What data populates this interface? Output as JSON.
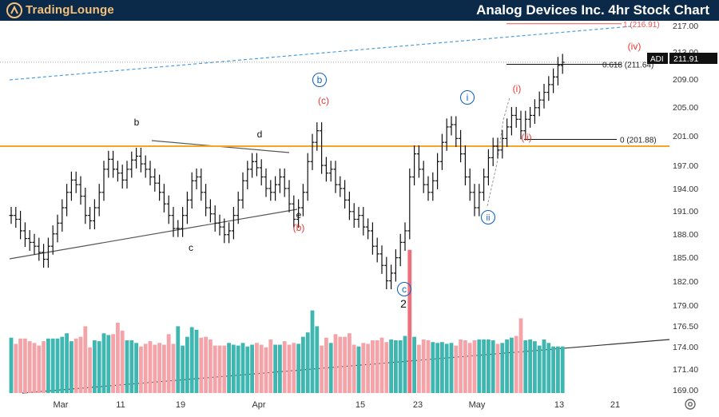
{
  "header": {
    "brand": "TradingLounge",
    "title": "Analog Devices Inc. 4hr Stock Chart",
    "background": "#0b2a4a",
    "brand_color": "#f5c07a"
  },
  "chart_data": {
    "type": "ohlc",
    "title": "Analog Devices Inc. 4hr Stock Chart",
    "symbol": "ADI",
    "last_price": "211.91",
    "price_axis": {
      "min": 168.5,
      "max": 217.3,
      "ticks": [
        "217.00",
        "213.00",
        "209.00",
        "205.00",
        "201.00",
        "197.00",
        "194.00",
        "191.00",
        "188.00",
        "185.00",
        "182.00",
        "179.00",
        "176.50",
        "174.00",
        "171.40",
        "169.00"
      ]
    },
    "time_axis": {
      "labels": [
        "Mar",
        "11",
        "19",
        "Apr",
        "15",
        "23",
        "May",
        "13",
        "21"
      ]
    },
    "closes": [
      192,
      191.5,
      190,
      189,
      188.5,
      188,
      187.2,
      186.3,
      188,
      189.6,
      191,
      193,
      195,
      196.6,
      196,
      194.5,
      192,
      191.3,
      193,
      195,
      198,
      199.3,
      198,
      197.5,
      196.6,
      198,
      199.2,
      199.7,
      198.7,
      198,
      197,
      196.2,
      195,
      193.5,
      192,
      190.3,
      190.3,
      192,
      194,
      196.5,
      197,
      195,
      193,
      192.2,
      191,
      190.5,
      189.5,
      190,
      192,
      194,
      196.5,
      198,
      199,
      198.2,
      197,
      195.5,
      195,
      196,
      197,
      195.5,
      193.5,
      191.5,
      193,
      195,
      199,
      201.5,
      203,
      198.5,
      197.5,
      198,
      196,
      195.5,
      194,
      192.5,
      191.5,
      192,
      190.5,
      190,
      188,
      187,
      185.5,
      183.5,
      184.5,
      186.5,
      188.5,
      190,
      197,
      200,
      198,
      196,
      195,
      196.5,
      199,
      201.5,
      203.5,
      203.8,
      202,
      200,
      197,
      195,
      193,
      195,
      197,
      199.5,
      201,
      200.5,
      202,
      203.5,
      205,
      204.5,
      203,
      204.5,
      205,
      206,
      207,
      208,
      209,
      210,
      211.5,
      211.9
    ],
    "volume": [
      63,
      56,
      62,
      62,
      59,
      57,
      54,
      59,
      62,
      62,
      62,
      64,
      68,
      59,
      62,
      64,
      76,
      52,
      60,
      59,
      68,
      66,
      67,
      80,
      71,
      60,
      60,
      57,
      53,
      56,
      59,
      55,
      57,
      55,
      67,
      56,
      76,
      54,
      64,
      75,
      72,
      63,
      64,
      61,
      54,
      54,
      54,
      57,
      55,
      54,
      57,
      53,
      55,
      57,
      55,
      52,
      61,
      55,
      55,
      59,
      55,
      57,
      56,
      64,
      69,
      94,
      76,
      54,
      63,
      57,
      67,
      64,
      64,
      68,
      55,
      53,
      57,
      56,
      60,
      60,
      63,
      58,
      61,
      60,
      60,
      65,
      163,
      64,
      55,
      61,
      60,
      58,
      57,
      58,
      56,
      57,
      54,
      61,
      60,
      57,
      60,
      61,
      61,
      61,
      60,
      56,
      57,
      61,
      63,
      65,
      85,
      60,
      61,
      59,
      54,
      61,
      57,
      53,
      53,
      53
    ],
    "horizontal_levels": [
      {
        "value": 201.0,
        "color": "#f5a623"
      },
      {
        "value": 211.64,
        "label": "0.618 (211.64)"
      },
      {
        "value": 201.88,
        "label": "0 (201.88)"
      },
      {
        "value": 216.91,
        "label": "1 (216.91)",
        "color": "#ef5350"
      }
    ],
    "wave_labels": [
      {
        "text": "b",
        "color": "#111111"
      },
      {
        "text": "c",
        "color": "#111111"
      },
      {
        "text": "d",
        "color": "#111111"
      },
      {
        "text": "e",
        "color": "#111111"
      },
      {
        "text": "(b)",
        "color": "#e53935"
      },
      {
        "text": "b",
        "color": "#1565c0",
        "circled": true
      },
      {
        "text": "(c)",
        "color": "#e53935"
      },
      {
        "text": "c",
        "color": "#1565c0",
        "circled": true
      },
      {
        "text": "2",
        "color": "#111111"
      },
      {
        "text": "i",
        "color": "#1565c0",
        "circled": true
      },
      {
        "text": "ii",
        "color": "#1565c0",
        "circled": true
      },
      {
        "text": "(i)",
        "color": "#e53935"
      },
      {
        "text": "(ii)",
        "color": "#e53935"
      },
      {
        "text": "(iv)",
        "color": "#e53935"
      }
    ],
    "colors": {
      "bar": "#111111",
      "vol_up": "#3fb7b0",
      "vol_down": "#f4a3a8",
      "vol_big": "#ef6f7a",
      "fib": "#ef5350",
      "support": "#f5a623",
      "blue_dash": "#4a9ee0",
      "axis_text": "#333333"
    }
  }
}
